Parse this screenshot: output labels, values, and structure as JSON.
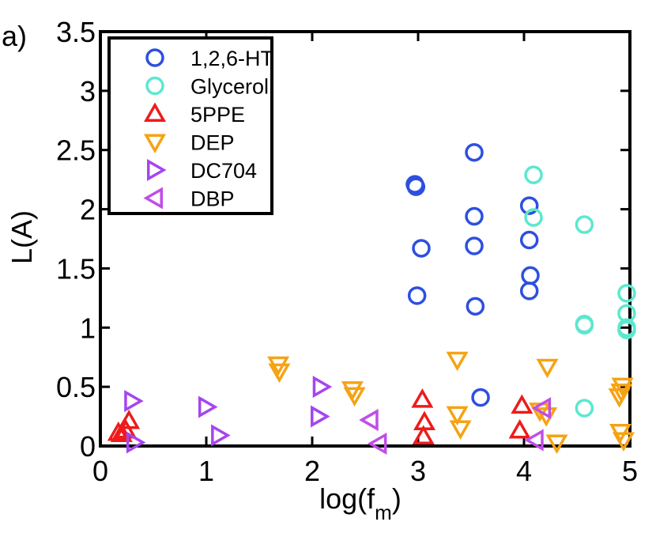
{
  "chart_data": {
    "type": "scatter",
    "panel_label": "a)",
    "title": "",
    "xlabel_main": "log(f",
    "xlabel_sub": "m",
    "xlabel_close": ")",
    "ylabel": "L(A)",
    "xlim": [
      0,
      5
    ],
    "ylim": [
      0,
      3.5
    ],
    "xticks": [
      0,
      1,
      2,
      3,
      4,
      5
    ],
    "xtick_labels": [
      "0",
      "1",
      "2",
      "3",
      "4",
      "5"
    ],
    "yticks": [
      0,
      0.5,
      1,
      1.5,
      2,
      2.5,
      3,
      3.5
    ],
    "ytick_labels": [
      "0",
      "0.5",
      "1",
      "1.5",
      "2",
      "2.5",
      "3",
      "3.5"
    ],
    "legend_position": "top-left",
    "series": [
      {
        "name": "1,2,6-HT",
        "marker": "circle",
        "color": "#2d4fe0",
        "points": [
          [
            2.97,
            2.21
          ],
          [
            2.98,
            2.19
          ],
          [
            3.03,
            1.67
          ],
          [
            2.99,
            1.27
          ],
          [
            3.53,
            2.48
          ],
          [
            3.53,
            1.94
          ],
          [
            3.53,
            1.69
          ],
          [
            3.54,
            1.18
          ],
          [
            3.59,
            0.41
          ],
          [
            4.05,
            2.03
          ],
          [
            4.05,
            1.74
          ],
          [
            4.06,
            1.44
          ],
          [
            4.05,
            1.31
          ]
        ]
      },
      {
        "name": "Glycerol",
        "marker": "circle",
        "color": "#5ce8cf",
        "points": [
          [
            4.09,
            2.29
          ],
          [
            4.09,
            1.93
          ],
          [
            4.57,
            1.87
          ],
          [
            4.57,
            1.03
          ],
          [
            4.57,
            1.02
          ],
          [
            4.57,
            0.32
          ],
          [
            4.97,
            1.29
          ],
          [
            4.97,
            1.12
          ],
          [
            4.97,
            1.0
          ],
          [
            4.97,
            0.98
          ]
        ]
      },
      {
        "name": "5PPE",
        "marker": "triangle-up",
        "color": "#ee1b1b",
        "points": [
          [
            0.17,
            0.11
          ],
          [
            0.2,
            0.1
          ],
          [
            0.24,
            0.13
          ],
          [
            0.27,
            0.21
          ],
          [
            3.04,
            0.39
          ],
          [
            3.06,
            0.2
          ],
          [
            3.05,
            0.08
          ],
          [
            3.98,
            0.34
          ],
          [
            3.96,
            0.13
          ]
        ]
      },
      {
        "name": "DEP",
        "marker": "triangle-down",
        "color": "#f5a314",
        "points": [
          [
            1.68,
            0.69
          ],
          [
            1.69,
            0.63
          ],
          [
            2.38,
            0.48
          ],
          [
            2.4,
            0.43
          ],
          [
            3.37,
            0.73
          ],
          [
            3.37,
            0.27
          ],
          [
            3.4,
            0.15
          ],
          [
            4.15,
            0.3
          ],
          [
            4.22,
            0.67
          ],
          [
            4.31,
            0.03
          ],
          [
            4.21,
            0.26
          ],
          [
            4.93,
            0.51
          ],
          [
            4.92,
            0.46
          ],
          [
            4.9,
            0.42
          ],
          [
            4.91,
            0.12
          ],
          [
            4.94,
            0.05
          ]
        ]
      },
      {
        "name": "DC704",
        "marker": "triangle-right",
        "color": "#a545f0",
        "points": [
          [
            0.3,
            0.38
          ],
          [
            0.32,
            0.03
          ],
          [
            1.0,
            0.33
          ],
          [
            1.12,
            0.09
          ],
          [
            2.08,
            0.5
          ],
          [
            2.06,
            0.25
          ]
        ]
      },
      {
        "name": "DBP",
        "marker": "triangle-left",
        "color": "#c04de8",
        "points": [
          [
            2.55,
            0.22
          ],
          [
            2.63,
            0.02
          ],
          [
            4.18,
            0.32
          ],
          [
            4.11,
            0.05
          ]
        ]
      }
    ]
  }
}
